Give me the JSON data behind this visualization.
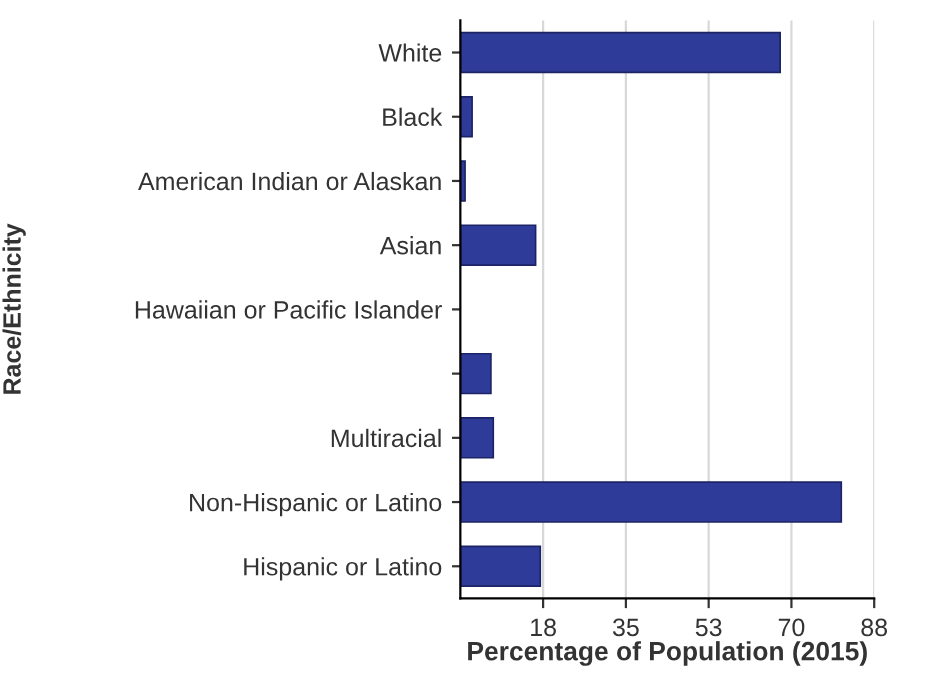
{
  "chart_data": {
    "type": "bar",
    "orientation": "horizontal",
    "xlabel": "Percentage of Population (2015)",
    "ylabel": "Race/Ethnicity",
    "categories": [
      "White",
      "Black",
      "American Indian or Alaskan",
      "Asian",
      "Hawaiian or Pacific Islander",
      null,
      "Multiracial",
      "Non-Hispanic or Latino",
      "Hispanic or Latino"
    ],
    "values": [
      68,
      2.5,
      1,
      16,
      null,
      6.5,
      7,
      81,
      17
    ],
    "color": "#2f3b99",
    "xlim": [
      0,
      88
    ],
    "xticks": [
      {
        "value": 17.6,
        "label": "18"
      },
      {
        "value": 35.2,
        "label": "35"
      },
      {
        "value": 52.8,
        "label": "53"
      },
      {
        "value": 70.4,
        "label": "70"
      },
      88
    ],
    "grid": "x"
  }
}
